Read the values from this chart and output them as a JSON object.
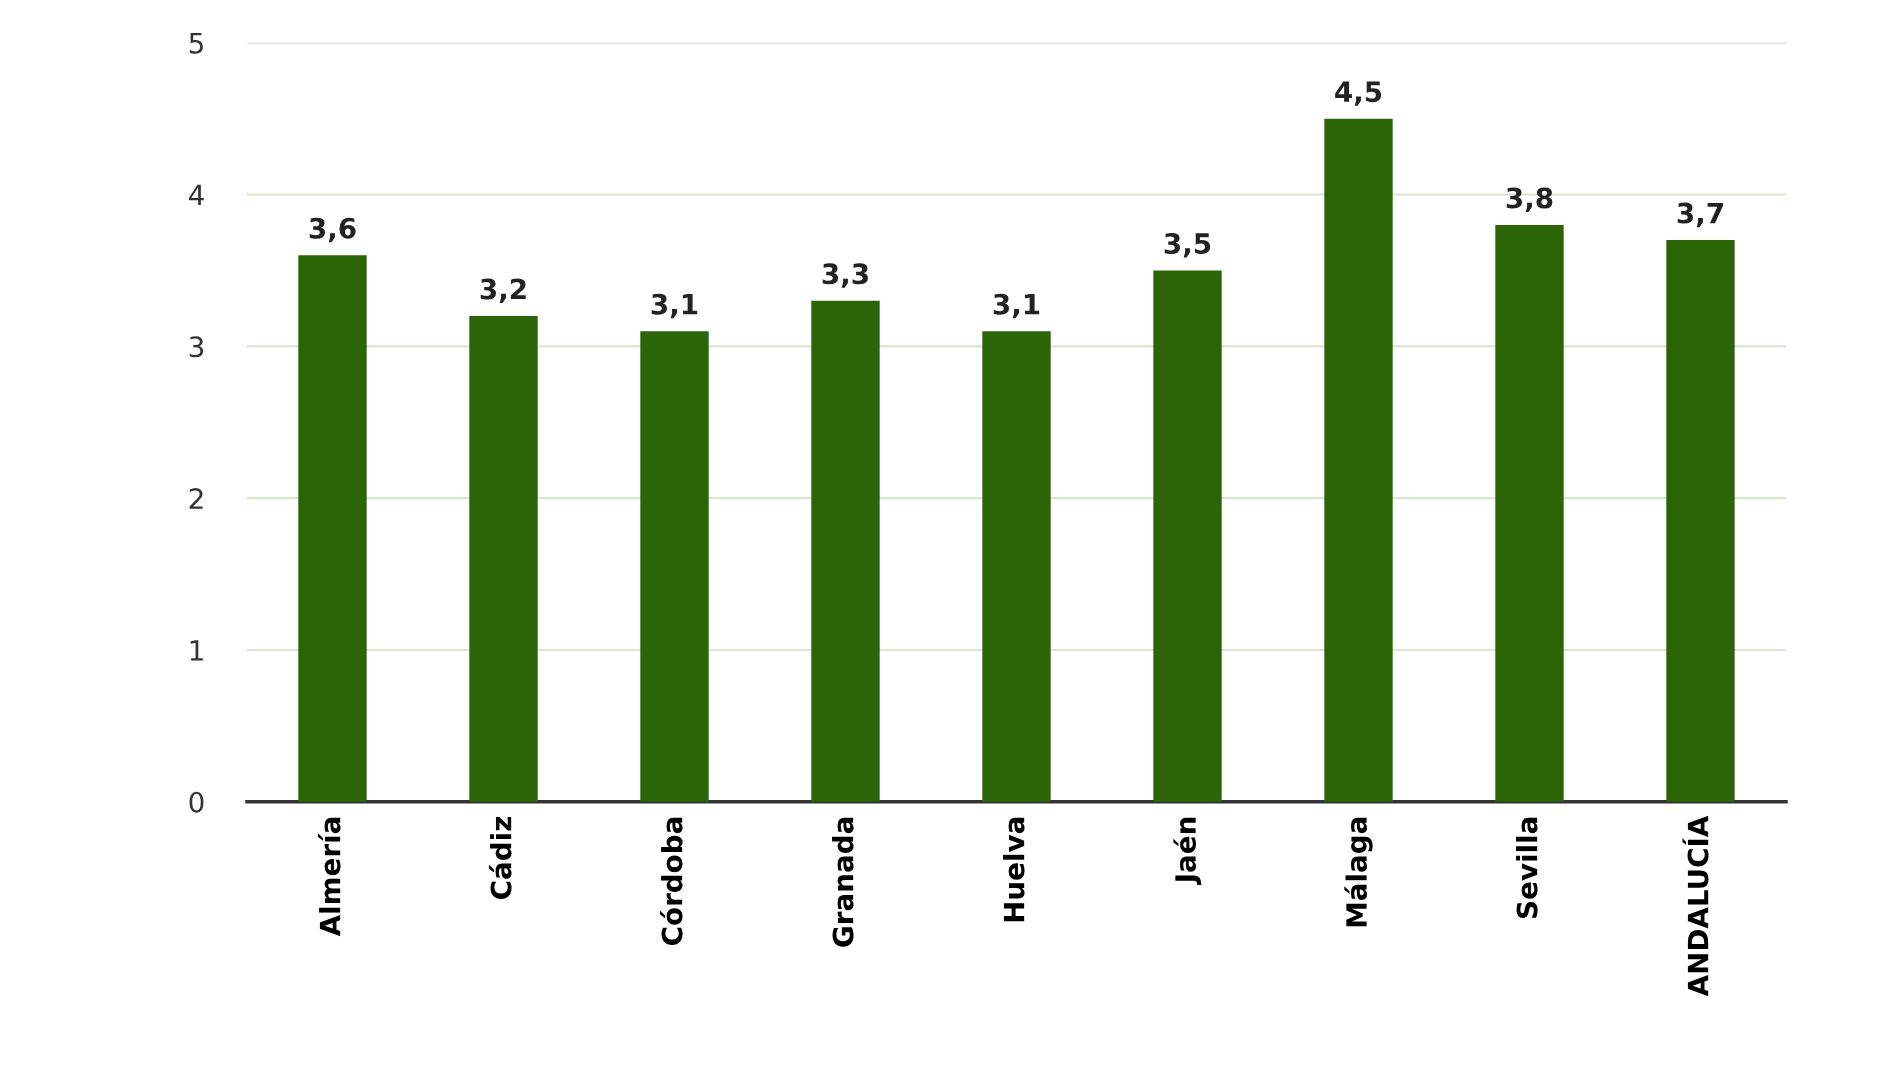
{
  "chart_data": {
    "type": "bar",
    "categories": [
      "Almería",
      "Cádiz",
      "Córdoba",
      "Granada",
      "Huelva",
      "Jaén",
      "Málaga",
      "Sevilla",
      "ANDALUCÍA"
    ],
    "values": [
      3.6,
      3.2,
      3.1,
      3.3,
      3.1,
      3.5,
      4.5,
      3.8,
      3.7
    ],
    "value_labels": [
      "3,6",
      "3,2",
      "3,1",
      "3,3",
      "3,1",
      "3,5",
      "4,5",
      "3,8",
      "3,7"
    ],
    "color": "#2b6508",
    "ylim": [
      0,
      5
    ],
    "yticks": [
      0,
      1,
      2,
      3,
      4,
      5
    ],
    "grid": "y"
  }
}
